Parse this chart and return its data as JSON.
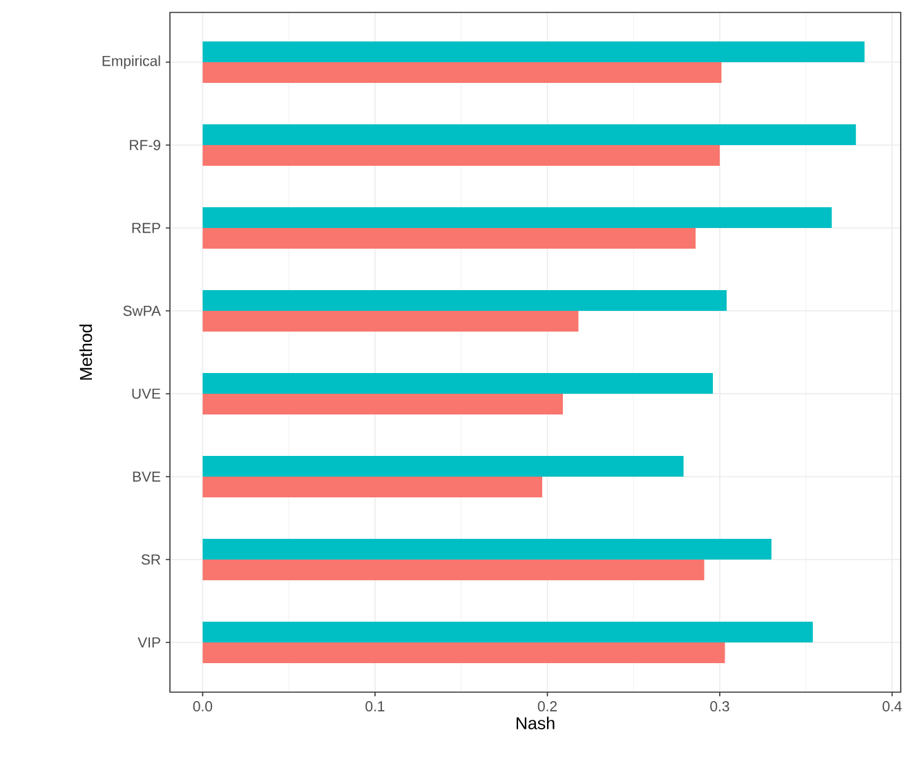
{
  "chart_data": {
    "type": "bar",
    "orientation": "horizontal",
    "xlabel": "Nash",
    "ylabel": "Method",
    "categories": [
      "Empirical",
      "RF-9",
      "REP",
      "SwPA",
      "UVE",
      "BVE",
      "SR",
      "VIP"
    ],
    "series": [
      {
        "color": "#f8766d",
        "values": [
          0.301,
          0.3,
          0.286,
          0.218,
          0.209,
          0.197,
          0.291,
          0.303
        ]
      },
      {
        "color": "#00bfc4",
        "values": [
          0.384,
          0.379,
          0.365,
          0.304,
          0.296,
          0.279,
          0.33,
          0.354
        ]
      }
    ],
    "xlim": [
      -0.019,
      0.405
    ],
    "xticks": [
      {
        "value": 0,
        "label": "0.0"
      },
      0.1,
      0.2,
      0.3,
      0.4
    ],
    "grid": true
  }
}
